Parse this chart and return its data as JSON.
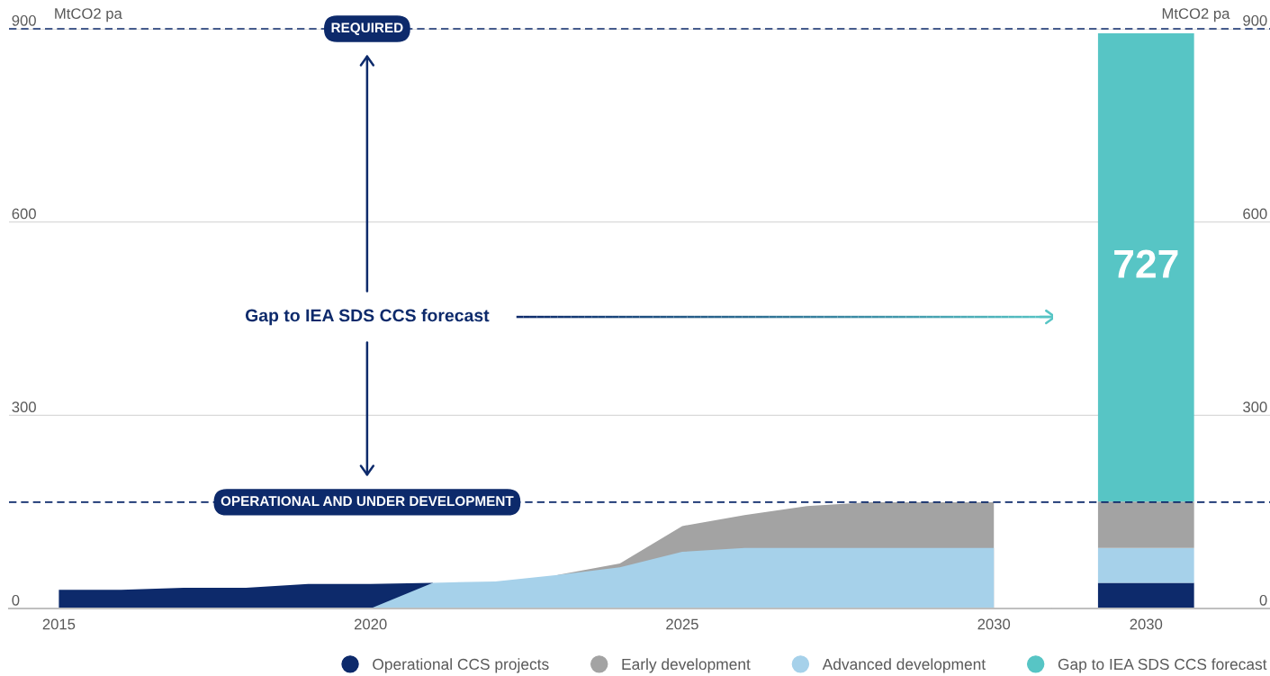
{
  "chart_data": [
    {
      "type": "area",
      "ylabel": "MtCO2 pa",
      "xlim": [
        2014.2,
        2030.95
      ],
      "xticks": [
        2015,
        2020,
        2025,
        2030
      ],
      "ylim": [
        0,
        900
      ],
      "yticks": [
        0,
        300,
        600,
        900
      ],
      "grid": "y",
      "legend": "bottom",
      "series": [
        {
          "name": "Operational CCS projects",
          "color": "#0d2a6b",
          "x": [
            2015,
            2016,
            2017,
            2018,
            2019,
            2020,
            2021
          ],
          "values": [
            29,
            29,
            32,
            32,
            38,
            38,
            40
          ]
        },
        {
          "name": "Early development",
          "color": "#a3a3a3",
          "x": [
            2023,
            2024,
            2025,
            2026,
            2027,
            2028,
            2029,
            2030
          ],
          "values": [
            52,
            70,
            128,
            145,
            159,
            165,
            165,
            165
          ]
        },
        {
          "name": "Advanced development",
          "color": "#a6d1ea",
          "x": [
            2020,
            2021,
            2022,
            2023,
            2024,
            2025,
            2026,
            2027,
            2028,
            2029,
            2030
          ],
          "values": [
            0,
            40,
            42,
            52,
            64,
            88,
            94,
            94,
            94,
            94,
            94
          ]
        }
      ],
      "ref_lines": [
        {
          "axis": "y",
          "value": 900,
          "label": "REQUIRED",
          "color": "#0d2a6b",
          "line_style": "dashed"
        },
        {
          "axis": "y",
          "value": 165,
          "label": "OPERATIONAL AND UNDER DEVELOPMENT",
          "color": "#0d2a6b",
          "line_style": "dashed"
        }
      ],
      "annotations": [
        "Gap to IEA SDS CCS forecast"
      ]
    },
    {
      "type": "bar",
      "stacked": true,
      "categories": [
        "2030"
      ],
      "ylabel": "MtCO2 pa",
      "ylim": [
        0,
        900
      ],
      "yticks": [
        0,
        300,
        600,
        900
      ],
      "grid": "y",
      "series": [
        {
          "name": "Operational CCS projects",
          "color": "#0d2a6b",
          "values": [
            40
          ]
        },
        {
          "name": "Advanced development",
          "color": "#a6d1ea",
          "values": [
            54
          ]
        },
        {
          "name": "Early development",
          "color": "#a3a3a3",
          "values": [
            72
          ]
        },
        {
          "name": "Gap to IEA SDS CCS forecast",
          "color": "#57c5c5",
          "values": [
            727
          ],
          "value_labels": [
            "727"
          ]
        }
      ],
      "ref_lines": [
        {
          "axis": "y",
          "value": 900,
          "color": "#0d2a6b",
          "line_style": "dashed"
        },
        {
          "axis": "y",
          "value": 165,
          "color": "#0d2a6b",
          "line_style": "dashed"
        }
      ]
    }
  ]
}
